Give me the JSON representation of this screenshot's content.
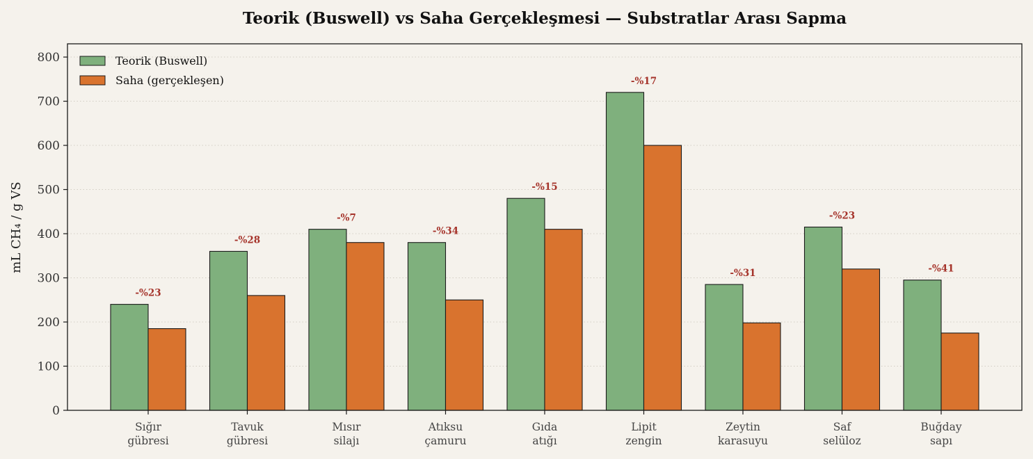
{
  "chart_data": {
    "type": "bar",
    "title": "Teorik (Buswell) vs Saha Gerçekleşmesi — Substratlar Arası Sapma",
    "xlabel": "",
    "ylabel": "mL CH₄ / g VS",
    "ylim": [
      0,
      830
    ],
    "yticks": [
      0,
      100,
      200,
      300,
      400,
      500,
      600,
      700,
      800
    ],
    "grid": "horizontal dotted",
    "legend_position": "top-left",
    "categories": [
      [
        "Sığır",
        "gübresi"
      ],
      [
        "Tavuk",
        "gübresi"
      ],
      [
        "Mısır",
        "silajı"
      ],
      [
        "Atıksu",
        "çamuru"
      ],
      [
        "Gıda",
        "atığı"
      ],
      [
        "Lipit",
        "zengin"
      ],
      [
        "Zeytin",
        "karasuyu"
      ],
      [
        "Saf",
        "selüloz"
      ],
      [
        "Buğday",
        "sapı"
      ]
    ],
    "series": [
      {
        "name": "Teorik (Buswell)",
        "color": "#7fb07d",
        "values": [
          240,
          360,
          410,
          380,
          480,
          720,
          285,
          415,
          295
        ]
      },
      {
        "name": "Saha (gerçekleşen)",
        "color": "#d9732e",
        "values": [
          185,
          260,
          380,
          250,
          410,
          600,
          198,
          320,
          175
        ]
      }
    ],
    "annotations": [
      "-%23",
      "-%28",
      "-%7",
      "-%34",
      "-%15",
      "-%17",
      "-%31",
      "-%23",
      "-%41"
    ],
    "colors": {
      "background": "#f5f2ec",
      "annotation": "#a5332a",
      "edge": "#1a1a1a"
    }
  }
}
